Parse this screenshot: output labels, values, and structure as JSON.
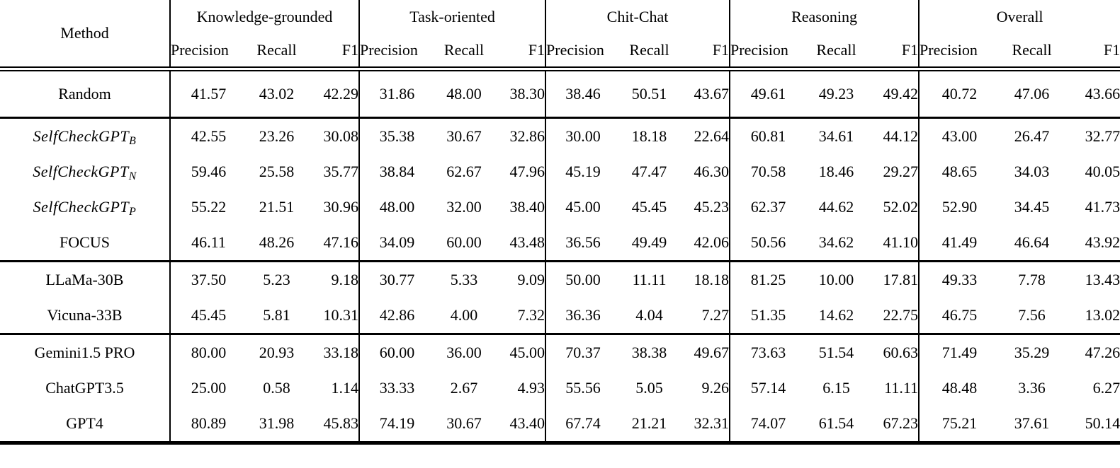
{
  "table": {
    "method_header": "Method",
    "metric_headers": [
      "Precision",
      "Recall",
      "F1"
    ],
    "groups": [
      {
        "label": "Knowledge-grounded"
      },
      {
        "label": "Task-oriented"
      },
      {
        "label": "Chit-Chat"
      },
      {
        "label": "Reasoning"
      },
      {
        "label": "Overall"
      }
    ],
    "sections": [
      {
        "rows": [
          {
            "method": "Random",
            "subscript": "",
            "italic": false,
            "values": [
              "41.57",
              "43.02",
              "42.29",
              "31.86",
              "48.00",
              "38.30",
              "38.46",
              "50.51",
              "43.67",
              "49.61",
              "49.23",
              "49.42",
              "40.72",
              "47.06",
              "43.66"
            ],
            "bold": []
          }
        ]
      },
      {
        "rows": [
          {
            "method": "SelfCheckGPT",
            "subscript": "B",
            "italic": true,
            "values": [
              "42.55",
              "23.26",
              "30.08",
              "35.38",
              "30.67",
              "32.86",
              "30.00",
              "18.18",
              "22.64",
              "60.81",
              "34.61",
              "44.12",
              "43.00",
              "26.47",
              "32.77"
            ],
            "bold": []
          },
          {
            "method": "SelfCheckGPT",
            "subscript": "N",
            "italic": true,
            "values": [
              "59.46",
              "25.58",
              "35.77",
              "38.84",
              "62.67",
              "47.96",
              "45.19",
              "47.47",
              "46.30",
              "70.58",
              "18.46",
              "29.27",
              "48.65",
              "34.03",
              "40.05"
            ],
            "bold": [
              5
            ]
          },
          {
            "method": "SelfCheckGPT",
            "subscript": "P",
            "italic": true,
            "values": [
              "55.22",
              "21.51",
              "30.96",
              "48.00",
              "32.00",
              "38.40",
              "45.00",
              "45.45",
              "45.23",
              "62.37",
              "44.62",
              "52.02",
              "52.90",
              "34.45",
              "41.73"
            ],
            "bold": []
          },
          {
            "method": "FOCUS",
            "subscript": "",
            "italic": false,
            "values": [
              "46.11",
              "48.26",
              "47.16",
              "34.09",
              "60.00",
              "43.48",
              "36.56",
              "49.49",
              "42.06",
              "50.56",
              "34.62",
              "41.10",
              "41.49",
              "46.64",
              "43.92"
            ],
            "bold": [
              2
            ]
          }
        ]
      },
      {
        "rows": [
          {
            "method": "LLaMa-30B",
            "subscript": "",
            "italic": false,
            "values": [
              "37.50",
              "5.23",
              "9.18",
              "30.77",
              "5.33",
              "9.09",
              "50.00",
              "11.11",
              "18.18",
              "81.25",
              "10.00",
              "17.81",
              "49.33",
              "7.78",
              "13.43"
            ],
            "bold": []
          },
          {
            "method": "Vicuna-33B",
            "subscript": "",
            "italic": false,
            "values": [
              "45.45",
              "5.81",
              "10.31",
              "42.86",
              "4.00",
              "7.32",
              "36.36",
              "4.04",
              "7.27",
              "51.35",
              "14.62",
              "22.75",
              "46.75",
              "7.56",
              "13.02"
            ],
            "bold": []
          }
        ]
      },
      {
        "rows": [
          {
            "method": "Gemini1.5 PRO",
            "subscript": "",
            "italic": false,
            "values": [
              "80.00",
              "20.93",
              "33.18",
              "60.00",
              "36.00",
              "45.00",
              "70.37",
              "38.38",
              "49.67",
              "73.63",
              "51.54",
              "60.63",
              "71.49",
              "35.29",
              "47.26"
            ],
            "bold": [
              8
            ]
          },
          {
            "method": "ChatGPT3.5",
            "subscript": "",
            "italic": false,
            "values": [
              "25.00",
              "0.58",
              "1.14",
              "33.33",
              "2.67",
              "4.93",
              "55.56",
              "5.05",
              "9.26",
              "57.14",
              "6.15",
              "11.11",
              "48.48",
              "3.36",
              "6.27"
            ],
            "bold": []
          },
          {
            "method": "GPT4",
            "subscript": "",
            "italic": false,
            "values": [
              "80.89",
              "31.98",
              "45.83",
              "74.19",
              "30.67",
              "43.40",
              "67.74",
              "21.21",
              "32.31",
              "74.07",
              "61.54",
              "67.23",
              "75.21",
              "37.61",
              "50.14"
            ],
            "bold": [
              11,
              14
            ]
          }
        ]
      }
    ],
    "column_widths": {
      "method": 240,
      "group_cols": [
        [
          108,
          85,
          74
        ],
        [
          106,
          84,
          73
        ],
        [
          105,
          83,
          72
        ],
        [
          108,
          85,
          74
        ],
        [
          114,
          91,
          79
        ]
      ]
    }
  }
}
